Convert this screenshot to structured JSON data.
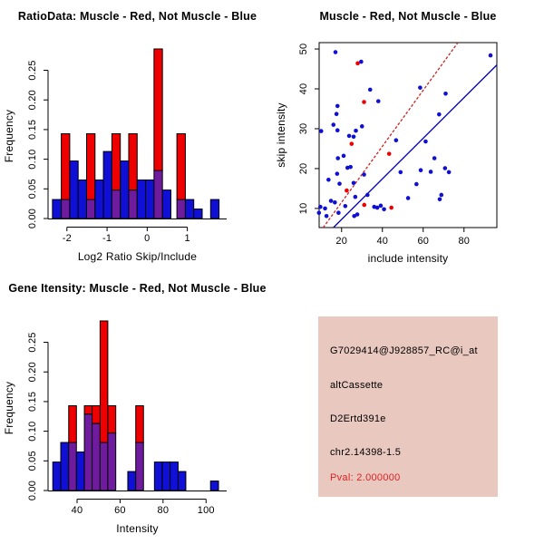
{
  "figure": {
    "background": "#FFFFFF"
  },
  "colors": {
    "red": "#EE0000",
    "blue": "#0F0FD6",
    "purple": "#6E1B9E",
    "axis": "#000000",
    "scatter_blue_line": "#0000B8",
    "scatter_red_line": "#CC2222",
    "info_bg": "#E9C8BF",
    "pval_red": "#DD2222"
  },
  "chart_data": [
    {
      "id": "ratio-histogram",
      "type": "bar",
      "title": "RatioData: Muscle - Red, Not Muscle - Blue",
      "xlabel": "Log2 Ratio Skip/Include",
      "ylabel": "Frequency",
      "xlim": [
        -2.47,
        1.98
      ],
      "ylim": [
        0,
        0.2875
      ],
      "xticks": [
        [
          -2,
          "-2"
        ],
        [
          -1,
          "-1"
        ],
        [
          0,
          "0"
        ],
        [
          1,
          "1"
        ]
      ],
      "yticks": [
        [
          0,
          "0.00"
        ],
        [
          0.05,
          "0.05"
        ],
        [
          0.1,
          "0.10"
        ],
        [
          0.15,
          "0.15"
        ],
        [
          0.2,
          "0.20"
        ],
        [
          0.25,
          "0.25"
        ]
      ],
      "grid": false,
      "legend": "none",
      "bars": [
        {
          "x0": -2.36,
          "x1": -2.14,
          "segs": [
            [
              "blue",
              0,
              0.032
            ]
          ]
        },
        {
          "x0": -2.14,
          "x1": -1.93,
          "segs": [
            [
              "purple",
              0,
              0.032
            ],
            [
              "red",
              0.032,
              0.143
            ]
          ]
        },
        {
          "x0": -1.93,
          "x1": -1.72,
          "segs": [
            [
              "blue",
              0,
              0.097
            ]
          ]
        },
        {
          "x0": -1.72,
          "x1": -1.51,
          "segs": [
            [
              "blue",
              0,
              0.065
            ]
          ]
        },
        {
          "x0": -1.51,
          "x1": -1.3,
          "segs": [
            [
              "purple",
              0,
              0.032
            ],
            [
              "red",
              0.032,
              0.143
            ]
          ]
        },
        {
          "x0": -1.3,
          "x1": -1.09,
          "segs": [
            [
              "blue",
              0,
              0.065
            ]
          ]
        },
        {
          "x0": -1.09,
          "x1": -0.88,
          "segs": [
            [
              "blue",
              0,
              0.113
            ]
          ]
        },
        {
          "x0": -0.88,
          "x1": -0.67,
          "segs": [
            [
              "purple",
              0,
              0.048
            ],
            [
              "red",
              0.048,
              0.143
            ]
          ]
        },
        {
          "x0": -0.67,
          "x1": -0.46,
          "segs": [
            [
              "blue",
              0,
              0.097
            ]
          ]
        },
        {
          "x0": -0.46,
          "x1": -0.25,
          "segs": [
            [
              "purple",
              0,
              0.048
            ],
            [
              "red",
              0.048,
              0.143
            ]
          ]
        },
        {
          "x0": -0.25,
          "x1": -0.04,
          "segs": [
            [
              "blue",
              0,
              0.065
            ]
          ]
        },
        {
          "x0": -0.04,
          "x1": 0.17,
          "segs": [
            [
              "blue",
              0,
              0.065
            ]
          ]
        },
        {
          "x0": 0.17,
          "x1": 0.38,
          "segs": [
            [
              "purple",
              0,
              0.081
            ],
            [
              "red",
              0.081,
              0.286
            ]
          ]
        },
        {
          "x0": 0.38,
          "x1": 0.59,
          "segs": [
            [
              "blue",
              0,
              0.048
            ]
          ]
        },
        {
          "x0": 0.74,
          "x1": 0.95,
          "segs": [
            [
              "purple",
              0,
              0.032
            ],
            [
              "red",
              0.032,
              0.143
            ]
          ]
        },
        {
          "x0": 0.95,
          "x1": 1.16,
          "segs": [
            [
              "blue",
              0,
              0.032
            ]
          ]
        },
        {
          "x0": 1.16,
          "x1": 1.37,
          "segs": [
            [
              "blue",
              0,
              0.016
            ]
          ]
        },
        {
          "x0": 1.58,
          "x1": 1.79,
          "segs": [
            [
              "blue",
              0,
              0.032
            ]
          ]
        }
      ]
    },
    {
      "id": "intensity-scatter",
      "type": "scatter",
      "title": "Muscle - Red, Not Muscle - Blue",
      "xlabel": "include intensity",
      "ylabel": "skip intensity",
      "xlim": [
        9,
        96.1
      ],
      "ylim": [
        5.2,
        51.6
      ],
      "xticks": [
        [
          20,
          "20"
        ],
        [
          40,
          "40"
        ],
        [
          60,
          "60"
        ],
        [
          80,
          "80"
        ]
      ],
      "yticks": [
        [
          10,
          "10"
        ],
        [
          20,
          "20"
        ],
        [
          30,
          "30"
        ],
        [
          40,
          "40"
        ],
        [
          50,
          "50"
        ]
      ],
      "grid": false,
      "legend": "none",
      "series": [
        {
          "name": "not-muscle-blue",
          "color_key": "blue",
          "points": [
            [
              17,
              49.2
            ],
            [
              29.6,
              46.8
            ],
            [
              93,
              48.4
            ],
            [
              34,
              39.8
            ],
            [
              58.5,
              40.3
            ],
            [
              71,
              38.8
            ],
            [
              38,
              36.9
            ],
            [
              18,
              35.7
            ],
            [
              17.5,
              33.7
            ],
            [
              67.8,
              33.6
            ],
            [
              16,
              31
            ],
            [
              30,
              30.6
            ],
            [
              10,
              29.4
            ],
            [
              18,
              29.6
            ],
            [
              27,
              29.5
            ],
            [
              23.7,
              28.2
            ],
            [
              25.9,
              28
            ],
            [
              46.7,
              27.1
            ],
            [
              61.2,
              26.8
            ],
            [
              21,
              23.2
            ],
            [
              18.2,
              22.6
            ],
            [
              65.5,
              22.6
            ],
            [
              22.9,
              20.2
            ],
            [
              24.4,
              20.4
            ],
            [
              48.9,
              19.1
            ],
            [
              70.7,
              20.1
            ],
            [
              72.6,
              19.1
            ],
            [
              58.8,
              19.6
            ],
            [
              63.7,
              19.2
            ],
            [
              31,
              18.5
            ],
            [
              17.8,
              18.7
            ],
            [
              13.6,
              17.2
            ],
            [
              19,
              16.2
            ],
            [
              25.9,
              16.4
            ],
            [
              56.7,
              16.1
            ],
            [
              32.7,
              13.4
            ],
            [
              26.7,
              12.9
            ],
            [
              52.6,
              12.6
            ],
            [
              68.9,
              13.4
            ],
            [
              68.1,
              12.3
            ],
            [
              14.8,
              11.9
            ],
            [
              16.7,
              11.5
            ],
            [
              21.8,
              10.6
            ],
            [
              36,
              10.4
            ],
            [
              37.5,
              10.2
            ],
            [
              39.2,
              10.7
            ],
            [
              40.8,
              9.8
            ],
            [
              9.6,
              10.4
            ],
            [
              11.9,
              10
            ],
            [
              8.9,
              8.9
            ],
            [
              12.6,
              8.1
            ],
            [
              18.5,
              8.9
            ],
            [
              26.2,
              8.1
            ],
            [
              27.7,
              8.5
            ]
          ]
        },
        {
          "name": "muscle-red",
          "color_key": "red",
          "points": [
            [
              27.9,
              46.4
            ],
            [
              31,
              36.7
            ],
            [
              24.9,
              26.2
            ],
            [
              43.3,
              23.7
            ],
            [
              22.5,
              14.5
            ],
            [
              31.1,
              10.9
            ],
            [
              44.4,
              10.2
            ]
          ]
        }
      ],
      "lines": [
        {
          "name": "muscle-fit-line",
          "color_key": "scatter_red_line",
          "dashed": true,
          "p1": [
            11,
            5.2
          ],
          "p2": [
            77,
            51.6
          ]
        },
        {
          "name": "not-muscle-fit-line",
          "color_key": "scatter_blue_line",
          "dashed": false,
          "p1": [
            16,
            5.2
          ],
          "p2": [
            96.1,
            46
          ]
        }
      ]
    },
    {
      "id": "gene-intensity-histogram",
      "type": "bar",
      "title": "Gene Itensity: Muscle - Red, Not Muscle - Blue",
      "xlabel": "Intensity",
      "ylabel": "Frequency",
      "xlim": [
        26.5,
        109.6
      ],
      "ylim": [
        0,
        0.2875
      ],
      "xticks": [
        [
          40,
          "40"
        ],
        [
          60,
          "60"
        ],
        [
          80,
          "80"
        ],
        [
          100,
          "100"
        ]
      ],
      "yticks": [
        [
          0,
          "0.00"
        ],
        [
          0.05,
          "0.05"
        ],
        [
          0.1,
          "0.10"
        ],
        [
          0.15,
          "0.15"
        ],
        [
          0.2,
          "0.20"
        ],
        [
          0.25,
          "0.25"
        ]
      ],
      "grid": false,
      "legend": "none",
      "bars": [
        {
          "x0": 28.7,
          "x1": 32.4,
          "segs": [
            [
              "blue",
              0,
              0.048
            ]
          ]
        },
        {
          "x0": 32.4,
          "x1": 36.1,
          "segs": [
            [
              "blue",
              0,
              0.081
            ]
          ]
        },
        {
          "x0": 36.1,
          "x1": 39.7,
          "segs": [
            [
              "purple",
              0,
              0.081
            ],
            [
              "red",
              0.081,
              0.143
            ]
          ]
        },
        {
          "x0": 39.7,
          "x1": 43.4,
          "segs": [
            [
              "blue",
              0,
              0.065
            ]
          ]
        },
        {
          "x0": 43.4,
          "x1": 47.0,
          "segs": [
            [
              "purple",
              0,
              0.129
            ],
            [
              "red",
              0.129,
              0.143
            ]
          ]
        },
        {
          "x0": 47.0,
          "x1": 50.7,
          "segs": [
            [
              "purple",
              0,
              0.113
            ],
            [
              "red",
              0.113,
              0.143
            ]
          ]
        },
        {
          "x0": 50.7,
          "x1": 54.3,
          "segs": [
            [
              "purple",
              0,
              0.081
            ],
            [
              "red",
              0.081,
              0.286
            ]
          ]
        },
        {
          "x0": 54.3,
          "x1": 58.0,
          "segs": [
            [
              "purple",
              0,
              0.097
            ],
            [
              "red",
              0.097,
              0.143
            ]
          ]
        },
        {
          "x0": 63.6,
          "x1": 67.3,
          "segs": [
            [
              "blue",
              0,
              0.032
            ]
          ]
        },
        {
          "x0": 67.3,
          "x1": 70.9,
          "segs": [
            [
              "purple",
              0,
              0.081
            ],
            [
              "red",
              0.081,
              0.143
            ]
          ]
        },
        {
          "x0": 76.0,
          "x1": 79.6,
          "segs": [
            [
              "blue",
              0,
              0.048
            ]
          ]
        },
        {
          "x0": 79.6,
          "x1": 83.3,
          "segs": [
            [
              "blue",
              0,
              0.048
            ]
          ]
        },
        {
          "x0": 83.3,
          "x1": 87.0,
          "segs": [
            [
              "blue",
              0,
              0.048
            ]
          ]
        },
        {
          "x0": 87.0,
          "x1": 90.6,
          "segs": [
            [
              "blue",
              0,
              0.032
            ]
          ]
        },
        {
          "x0": 102.1,
          "x1": 105.8,
          "segs": [
            [
              "blue",
              0,
              0.016
            ]
          ]
        }
      ]
    },
    {
      "id": "gene-info-panel",
      "type": "table",
      "bg": "#E9C8BF",
      "lines": [
        {
          "text": "G7029414@J928857_RC@i_at",
          "color": "#000000"
        },
        {
          "text": "altCassette",
          "color": "#000000"
        },
        {
          "text": "D2Ertd391e",
          "color": "#000000"
        },
        {
          "text": "chr2.14398-1.5",
          "color": "#000000"
        },
        {
          "text": "Pval: 2.000000",
          "color": "#DD2222"
        }
      ]
    }
  ]
}
